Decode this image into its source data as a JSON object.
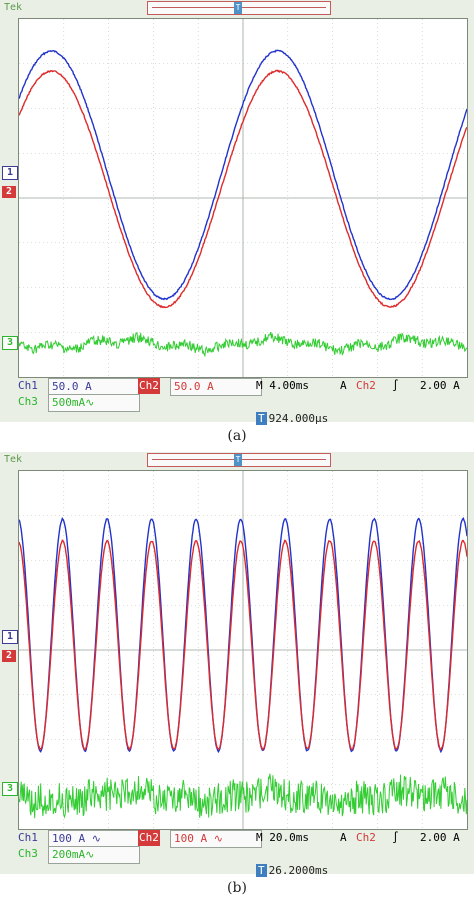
{
  "panels": [
    {
      "id": "a",
      "header_tag": "Tek",
      "trigger_marker": "T",
      "ch_markers": {
        "ch1": "1",
        "ch2": "2",
        "ch3": "3"
      },
      "status": {
        "ch1_label": "Ch1",
        "ch1_scale": "50.0 A",
        "ch2_label": "Ch2",
        "ch2_scale": "50.0 A",
        "timebase": "M 4.00ms",
        "trig_source_prefix": "A",
        "trig_source": "Ch2",
        "trig_slope": "∫",
        "trig_level": "2.00 A",
        "ch3_label": "Ch3",
        "ch3_scale": "500mA∿",
        "trigger_position": "924.000µs"
      },
      "caption": "(a)",
      "colors": {
        "ch1": "#2233cc",
        "ch2": "#dd2b2b",
        "ch3": "#33cc33"
      }
    },
    {
      "id": "b",
      "header_tag": "Tek",
      "trigger_marker": "T",
      "ch_markers": {
        "ch1": "1",
        "ch2": "2",
        "ch3": "3"
      },
      "status": {
        "ch1_label": "Ch1",
        "ch1_scale": "100 A ∿",
        "ch2_label": "Ch2",
        "ch2_scale": "100 A ∿",
        "timebase": "M 20.0ms",
        "trig_source_prefix": "A",
        "trig_source": "Ch2",
        "trig_slope": "∫",
        "trig_level": "2.00 A",
        "ch3_label": "Ch3",
        "ch3_scale": "200mA∿",
        "trigger_position": "26.2000ms"
      },
      "caption": "(b)",
      "colors": {
        "ch1": "#2233cc",
        "ch2": "#dd2b2b",
        "ch3": "#33cc33"
      }
    }
  ]
}
